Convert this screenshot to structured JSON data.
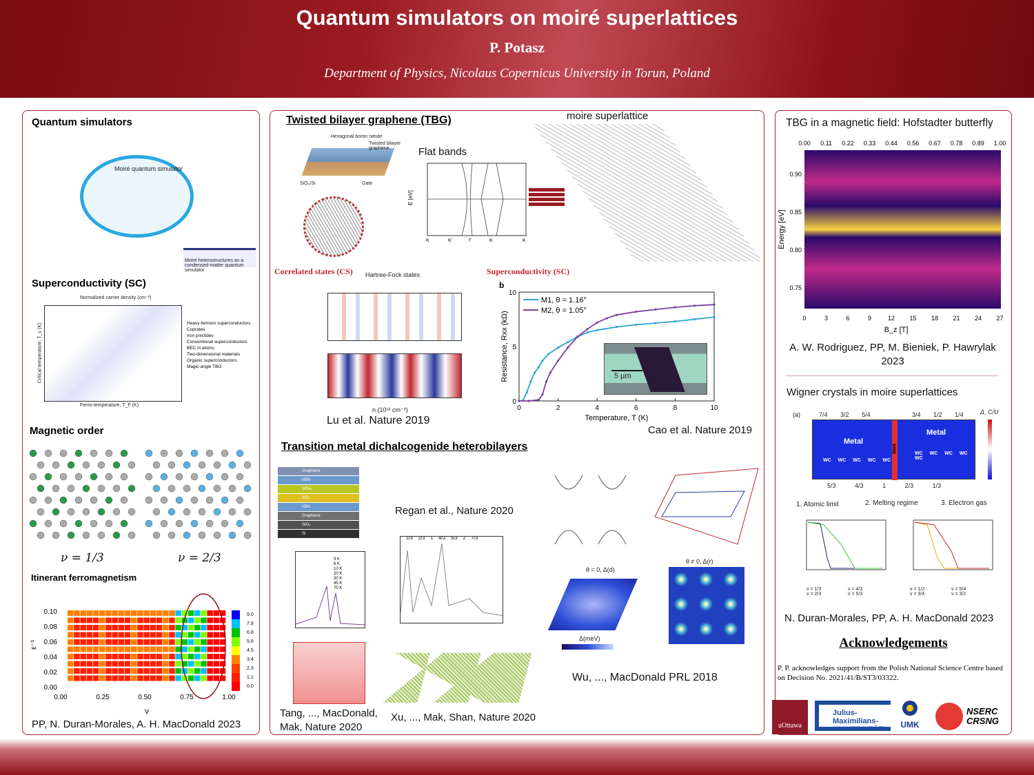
{
  "header": {
    "title": "Quantum simulators on moiré superlattices",
    "author": "P. Potasz",
    "affiliation": "Department of Physics, Nicolaus Copernicus University in Torun, Poland"
  },
  "left": {
    "quantum_simulators": {
      "title": "Quantum simulators",
      "center_label": "Moiré quantum simulator",
      "article": "Moiré heterostructures as a condensed-matter quantum simulator"
    },
    "superconductivity": {
      "title": "Superconductivity (SC)",
      "xlabel": "Fermi temperature, T_F (K)",
      "ylabel": "Critical temperature, T_c (K)",
      "top_label": "Normalized carrier density (cm⁻²)",
      "legend": [
        "Heavy-fermion superconductors",
        "Cuprates",
        "Iron pnictides",
        "Conventional superconductors",
        "BEC in atoms",
        "Two-dimensional materials",
        "Organic superconductors",
        "Magic-angle TBG"
      ]
    },
    "magnetic_order": {
      "title": "Magnetic order",
      "labels": [
        "ν = 1/3",
        "ν = 2/3"
      ]
    },
    "itinerant": {
      "title": "Itinerant ferromagnetism",
      "xlabel": "ν",
      "ylabel": "ε⁻¹",
      "xticks": [
        "0.00",
        "0.25",
        "0.50",
        "0.75",
        "1.00"
      ],
      "yticks": [
        "0.00",
        "0.02",
        "0.04",
        "0.06",
        "0.08",
        "0.10"
      ],
      "cbar": [
        "9.0",
        "7.9",
        "6.8",
        "5.6",
        "4.5",
        "3.4",
        "2.3",
        "1.1",
        "0.0"
      ],
      "citation": "PP, N. Duran-Morales, A. H. MacDonald 2023"
    }
  },
  "middle": {
    "tbg": {
      "title": "Twisted bilayer graphene (TBG)",
      "device_labels": [
        "Hexagonal boron nitride",
        "Twisted bilayer graphene",
        "Gate",
        "SiO₂/Si"
      ],
      "flat_bands": "Flat bands",
      "ylabel": "E [eV]",
      "xticks": [
        "K",
        "K'",
        "Γ",
        "K",
        "K"
      ],
      "moire": "moire superlattice"
    },
    "cs": {
      "title": "Correlated states (CS)",
      "hf": "Hartree-Fock states",
      "xlabel": "n (10¹² cm⁻²)",
      "citation": "Lu et al. Nature 2019"
    },
    "sc": {
      "title": "Superconductivity (SC)",
      "panel": "b",
      "xlabel": "Temperature, T (K)",
      "ylabel": "Resistance, Rxx (kΩ)",
      "scale": "5 µm",
      "citation": "Cao et al. Nature 2019"
    },
    "tmd": {
      "title": "Transition metal dichalcogenide heterobilayers",
      "layers": [
        "Graphene",
        "hBN",
        "WSe₂",
        "WS₂",
        "hBN",
        "Graphene",
        "SiO₂",
        "Si"
      ],
      "regan": "Regan et al., Nature 2020",
      "tang": "Tang, ..., MacDonald, Mak, Nature 2020",
      "xu": "Xu, ..., Mak, Shan, Nature 2020",
      "wu": "Wu, ..., MacDonald PRL 2018",
      "temps": [
        "3 K",
        "6 K",
        "10 K",
        "20 K",
        "30 K",
        "45 K",
        "70 K"
      ],
      "fillings": [
        "1/3",
        "2/3",
        "1",
        "4/3",
        "5/3",
        "2",
        "7/3"
      ],
      "delta_label": "Δ(meV)",
      "theta0": "θ = 0, Δ(d)",
      "theta1": "θ ≠ 0, Δ(r)"
    }
  },
  "right": {
    "hofstadter": {
      "title": "TBG in a magnetic field: Hofstadter butterfly",
      "xlabel": "B_z [T]",
      "ylabel": "Energy [eV]",
      "top_ticks": [
        "0.00",
        "0.11",
        "0.22",
        "0.33",
        "0.44",
        "0.56",
        "0.67",
        "0.78",
        "0.89",
        "1.00"
      ],
      "xticks": [
        "0",
        "3",
        "6",
        "9",
        "12",
        "15",
        "18",
        "21",
        "24",
        "27"
      ],
      "yticks": [
        "0.90",
        "0.85",
        "0.80",
        "0.75"
      ],
      "citation": "A. W. Rodriguez, PP, M. Bieniek, P. Hawrylak 2023"
    },
    "wigner": {
      "title": "Wigner crystals in moire superlattices",
      "regimes": [
        "1. Atomic limit",
        "2. Melting regime",
        "3. Electron gas"
      ],
      "metal": "Metal",
      "mott": "Mott",
      "wc": "WC",
      "top_ticks": [
        "7/4",
        "3/2",
        "5/4",
        "3/4",
        "1/2",
        "1/4"
      ],
      "bottom_ticks": [
        "5/3",
        "4/3",
        "1",
        "2/3",
        "1/3"
      ],
      "legend_b": [
        "ν = 1/3",
        "ν = 4/3",
        "ν = 2/3",
        "ν = 5/3"
      ],
      "legend_c": [
        "ν = 1/2",
        "ν = 5/4",
        "ν = 3/4",
        "ν = 3/2"
      ],
      "cbar_label": "Δ_C/U",
      "citation": "N. Duran-Morales, PP, A. H. MacDonald 2023"
    },
    "ack": {
      "title": "Acknowledgements",
      "text": "P. P. acknowledges support from the Polish National Science Centre based on Decision No. 2021/41/B/ST3/03322.",
      "logos": [
        "uOttawa",
        "Julius-Maximilians-UNIVERSITÄT WÜRZBURG",
        "UMK",
        "NSERC CRSNG"
      ]
    }
  },
  "colors": {
    "header": "#8e1118",
    "border": "#a32a30",
    "accent_red": "#c0282e",
    "m1": "#2fa3d6",
    "m2": "#7b3fa0"
  },
  "chart_data": {
    "type": "line",
    "title": "",
    "xlabel": "Temperature, T (K)",
    "ylabel": "Resistance, Rxx (kΩ)",
    "xlim": [
      0,
      10
    ],
    "ylim": [
      0,
      10
    ],
    "xticks": [
      0,
      2,
      4,
      6,
      8,
      10
    ],
    "yticks": [
      0,
      5,
      10
    ],
    "legend_position": "top-left",
    "series": [
      {
        "name": "M1, θ = 1.16°",
        "color": "#2fa3d6",
        "x": [
          0,
          0.2,
          0.4,
          0.6,
          0.8,
          1.0,
          1.2,
          1.5,
          2,
          2.5,
          3,
          3.5,
          4,
          5,
          6,
          7,
          8,
          9,
          10
        ],
        "y": [
          0,
          0.05,
          0.8,
          1.8,
          2.6,
          3.1,
          3.7,
          4.3,
          4.9,
          5.4,
          5.9,
          6.3,
          6.5,
          6.8,
          7.0,
          7.15,
          7.3,
          7.5,
          7.7
        ]
      },
      {
        "name": "M2, θ = 1.05°",
        "color": "#7b3fa0",
        "x": [
          0,
          0.5,
          1.0,
          1.2,
          1.4,
          1.6,
          2,
          2.5,
          3,
          3.5,
          4,
          4.5,
          5,
          6,
          7,
          8,
          9,
          10
        ],
        "y": [
          0,
          0,
          0.1,
          0.6,
          1.8,
          2.6,
          3.7,
          4.9,
          5.9,
          6.6,
          7.2,
          7.6,
          7.9,
          8.2,
          8.4,
          8.6,
          8.75,
          8.85
        ]
      }
    ]
  }
}
